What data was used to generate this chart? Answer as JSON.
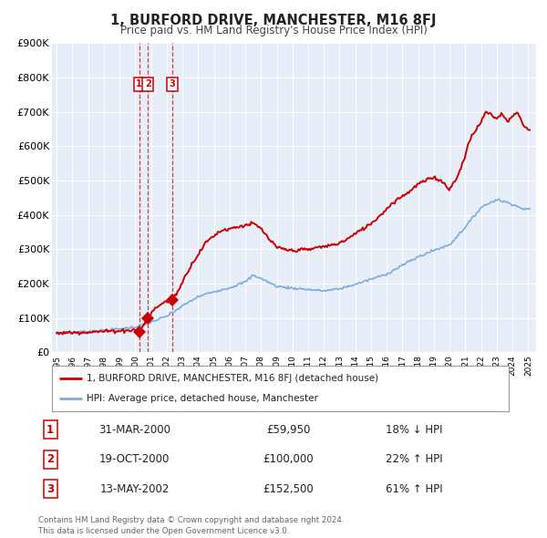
{
  "title": "1, BURFORD DRIVE, MANCHESTER, M16 8FJ",
  "subtitle": "Price paid vs. HM Land Registry's House Price Index (HPI)",
  "legend_property": "1, BURFORD DRIVE, MANCHESTER, M16 8FJ (detached house)",
  "legend_hpi": "HPI: Average price, detached house, Manchester",
  "property_color": "#cc0000",
  "hpi_color": "#7aadde",
  "background_color": "#e8eef8",
  "transactions": [
    {
      "label": "1",
      "date_num": 2000.25,
      "price": 59950,
      "pct": "18%",
      "dir": "↓",
      "date_str": "31-MAR-2000",
      "price_str": "£59,950"
    },
    {
      "label": "2",
      "date_num": 2000.8,
      "price": 100000,
      "pct": "22%",
      "dir": "↑",
      "date_str": "19-OCT-2000",
      "price_str": "£100,000"
    },
    {
      "label": "3",
      "date_num": 2002.37,
      "price": 152500,
      "pct": "61%",
      "dir": "↑",
      "date_str": "13-MAY-2002",
      "price_str": "£152,500"
    }
  ],
  "footer": "Contains HM Land Registry data © Crown copyright and database right 2024.\nThis data is licensed under the Open Government Licence v3.0.",
  "ylim": [
    0,
    900000
  ],
  "yticks": [
    0,
    100000,
    200000,
    300000,
    400000,
    500000,
    600000,
    700000,
    800000,
    900000
  ],
  "ytick_labels": [
    "£0",
    "£100K",
    "£200K",
    "£300K",
    "£400K",
    "£500K",
    "£600K",
    "£700K",
    "£800K",
    "£900K"
  ],
  "xlim_start": 1994.7,
  "xlim_end": 2025.5,
  "hpi_anchors": [
    [
      1995.0,
      56000
    ],
    [
      1996.0,
      58000
    ],
    [
      1997.0,
      61000
    ],
    [
      1998.0,
      64000
    ],
    [
      1999.0,
      68000
    ],
    [
      2000.0,
      74000
    ],
    [
      2001.0,
      88000
    ],
    [
      2002.0,
      105000
    ],
    [
      2003.0,
      135000
    ],
    [
      2004.0,
      162000
    ],
    [
      2005.0,
      177000
    ],
    [
      2006.0,
      188000
    ],
    [
      2007.0,
      205000
    ],
    [
      2007.5,
      225000
    ],
    [
      2008.0,
      215000
    ],
    [
      2009.0,
      192000
    ],
    [
      2010.0,
      187000
    ],
    [
      2011.0,
      183000
    ],
    [
      2012.0,
      179000
    ],
    [
      2013.0,
      185000
    ],
    [
      2014.0,
      198000
    ],
    [
      2015.0,
      213000
    ],
    [
      2016.0,
      228000
    ],
    [
      2017.0,
      254000
    ],
    [
      2018.0,
      278000
    ],
    [
      2019.0,
      297000
    ],
    [
      2020.0,
      313000
    ],
    [
      2021.0,
      365000
    ],
    [
      2022.0,
      422000
    ],
    [
      2023.0,
      445000
    ],
    [
      2023.5,
      438000
    ],
    [
      2024.0,
      432000
    ],
    [
      2024.5,
      420000
    ],
    [
      2025.1,
      415000
    ]
  ],
  "prop_anchors": [
    [
      1995.0,
      56000
    ],
    [
      1996.0,
      58000
    ],
    [
      1997.0,
      59000
    ],
    [
      1998.0,
      61000
    ],
    [
      1999.0,
      63000
    ],
    [
      2000.0,
      65000
    ],
    [
      2000.25,
      59950
    ],
    [
      2000.5,
      78000
    ],
    [
      2000.8,
      100000
    ],
    [
      2001.3,
      130000
    ],
    [
      2001.8,
      145000
    ],
    [
      2002.37,
      152500
    ],
    [
      2002.8,
      185000
    ],
    [
      2003.0,
      205000
    ],
    [
      2003.5,
      250000
    ],
    [
      2004.0,
      285000
    ],
    [
      2004.5,
      320000
    ],
    [
      2005.0,
      340000
    ],
    [
      2005.5,
      355000
    ],
    [
      2006.0,
      360000
    ],
    [
      2006.5,
      365000
    ],
    [
      2007.0,
      370000
    ],
    [
      2007.5,
      375000
    ],
    [
      2008.0,
      360000
    ],
    [
      2008.5,
      330000
    ],
    [
      2009.0,
      305000
    ],
    [
      2009.5,
      300000
    ],
    [
      2010.0,
      295000
    ],
    [
      2010.5,
      300000
    ],
    [
      2011.0,
      298000
    ],
    [
      2011.5,
      305000
    ],
    [
      2012.0,
      308000
    ],
    [
      2012.5,
      312000
    ],
    [
      2013.0,
      318000
    ],
    [
      2013.5,
      330000
    ],
    [
      2014.0,
      345000
    ],
    [
      2014.5,
      360000
    ],
    [
      2015.0,
      375000
    ],
    [
      2015.5,
      395000
    ],
    [
      2016.0,
      418000
    ],
    [
      2016.5,
      440000
    ],
    [
      2017.0,
      455000
    ],
    [
      2017.5,
      470000
    ],
    [
      2018.0,
      490000
    ],
    [
      2018.5,
      500000
    ],
    [
      2019.0,
      510000
    ],
    [
      2019.5,
      498000
    ],
    [
      2020.0,
      475000
    ],
    [
      2020.5,
      510000
    ],
    [
      2021.0,
      575000
    ],
    [
      2021.3,
      620000
    ],
    [
      2021.7,
      650000
    ],
    [
      2022.0,
      670000
    ],
    [
      2022.3,
      700000
    ],
    [
      2022.7,
      690000
    ],
    [
      2023.0,
      680000
    ],
    [
      2023.3,
      695000
    ],
    [
      2023.7,
      670000
    ],
    [
      2024.0,
      690000
    ],
    [
      2024.3,
      700000
    ],
    [
      2024.7,
      660000
    ],
    [
      2025.1,
      645000
    ]
  ]
}
